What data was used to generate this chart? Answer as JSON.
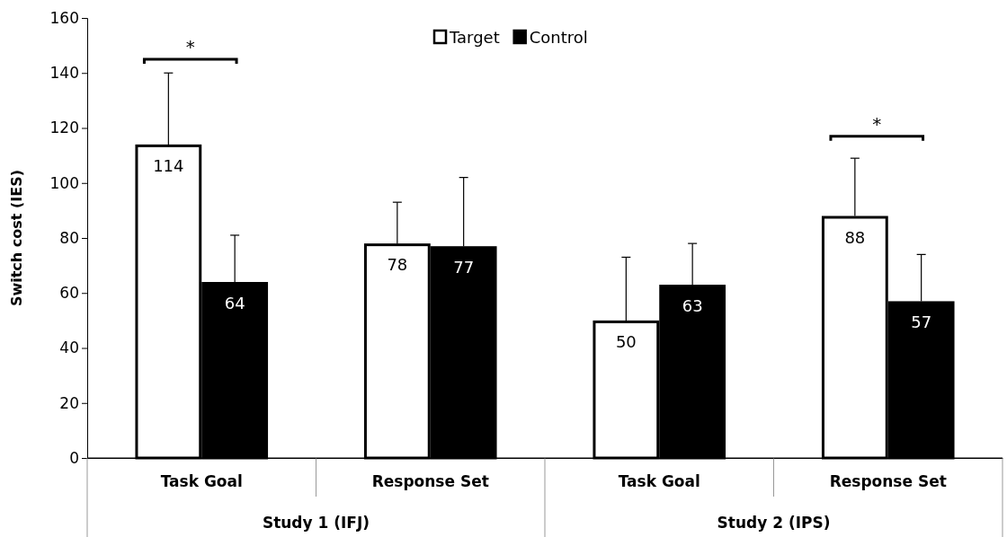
{
  "chart_data": {
    "type": "bar",
    "ylabel": "Switch cost (IES)",
    "categories": [
      "Task Goal",
      "Response Set",
      "Task Goal",
      "Response Set"
    ],
    "series": [
      {
        "name": "Target",
        "color": "#ffffff",
        "values": [
          114,
          78,
          50,
          88
        ],
        "errors": [
          [
            114,
            140
          ],
          [
            78,
            93
          ],
          [
            50,
            73
          ],
          [
            88,
            109
          ]
        ]
      },
      {
        "name": "Control",
        "color": "#000000",
        "values": [
          64,
          77,
          63,
          57
        ],
        "errors": [
          [
            64,
            81
          ],
          [
            77,
            102
          ],
          [
            63,
            78
          ],
          [
            57,
            74
          ]
        ]
      }
    ],
    "ylim": [
      0,
      160
    ],
    "yticks": [
      0,
      20,
      40,
      60,
      80,
      100,
      120,
      140,
      160
    ],
    "grid": false,
    "legend": "top",
    "data_labels": true,
    "annotations": [
      "*",
      "*",
      "Study 1 (IFJ)",
      "Study 2 (IPS)"
    ]
  }
}
